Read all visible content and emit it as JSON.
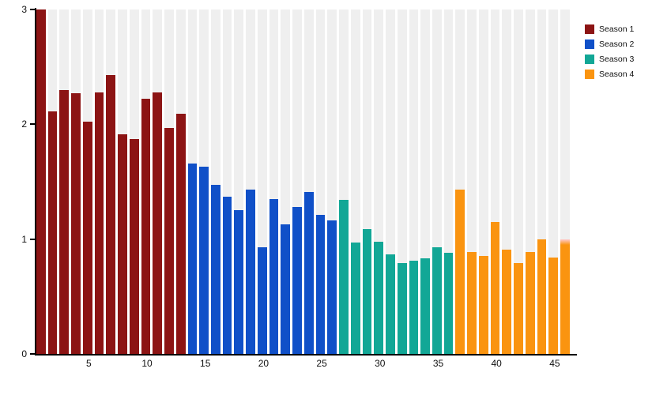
{
  "chart_data": {
    "type": "bar",
    "title": "",
    "xlabel": "",
    "ylabel": "",
    "x_count": 46,
    "x_ticks": [
      5,
      10,
      15,
      20,
      25,
      30,
      35,
      40,
      45
    ],
    "y_ticks": [
      0,
      1,
      2,
      3
    ],
    "ylim": [
      0,
      3
    ],
    "grid": false,
    "plot_background": "striped-columns",
    "legend_position": "top-right",
    "series": [
      {
        "name": "Season 1",
        "color": "#8C1414",
        "episodes": "1-13",
        "values": [
          3.0,
          2.11,
          2.3,
          2.27,
          2.02,
          2.28,
          2.43,
          1.91,
          1.87,
          2.22,
          2.28,
          1.97,
          2.09
        ]
      },
      {
        "name": "Season 2",
        "color": "#1050C8",
        "episodes": "14-26",
        "values": [
          1.66,
          1.63,
          1.47,
          1.37,
          1.25,
          1.43,
          0.93,
          1.35,
          1.13,
          1.28,
          1.41,
          1.21,
          1.16
        ]
      },
      {
        "name": "Season 3",
        "color": "#12A796",
        "episodes": "27-36",
        "values": [
          1.34,
          0.97,
          1.09,
          0.98,
          0.87,
          0.79,
          0.81,
          0.83,
          0.93,
          0.88
        ]
      },
      {
        "name": "Season 4",
        "color": "#FA9410",
        "episodes": "37-46",
        "values": [
          1.43,
          0.89,
          0.85,
          1.15,
          0.91,
          0.79,
          0.89,
          1.0,
          0.84,
          1.0
        ]
      }
    ]
  },
  "legend": {
    "items": [
      {
        "label": "Season 1",
        "color": "#8C1414"
      },
      {
        "label": "Season 2",
        "color": "#1050C8"
      },
      {
        "label": "Season 3",
        "color": "#12A796"
      },
      {
        "label": "Season 4",
        "color": "#FA9410"
      }
    ]
  },
  "colors": {
    "background": "#FFFFFF",
    "plot_column": "#EFEFEF",
    "axis": "#000000",
    "last_bar_cap": "#FFCDD6"
  }
}
